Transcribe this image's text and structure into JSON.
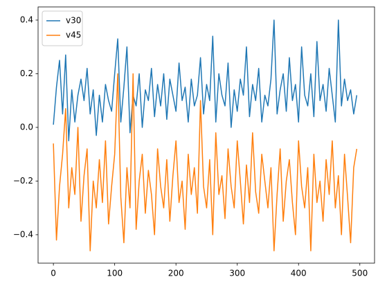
{
  "chart_data": {
    "type": "line",
    "x": [
      0,
      5,
      10,
      15,
      20,
      25,
      30,
      35,
      40,
      45,
      50,
      55,
      60,
      65,
      70,
      75,
      80,
      85,
      90,
      95,
      100,
      105,
      110,
      115,
      120,
      125,
      130,
      135,
      140,
      145,
      150,
      155,
      160,
      165,
      170,
      175,
      180,
      185,
      190,
      195,
      200,
      205,
      210,
      215,
      220,
      225,
      230,
      235,
      240,
      245,
      250,
      255,
      260,
      265,
      270,
      275,
      280,
      285,
      290,
      295,
      300,
      305,
      310,
      315,
      320,
      325,
      330,
      335,
      340,
      345,
      350,
      355,
      360,
      365,
      370,
      375,
      380,
      385,
      390,
      395,
      400,
      405,
      410,
      415,
      420,
      425,
      430,
      435,
      440,
      445,
      450,
      455,
      460,
      465,
      470,
      475,
      480,
      485,
      490,
      495
    ],
    "series": [
      {
        "name": "v30",
        "color": "#1f77b4",
        "values": [
          0.01,
          0.15,
          0.25,
          0.05,
          0.27,
          -0.05,
          0.14,
          0.02,
          0.12,
          0.18,
          0.1,
          0.22,
          0.05,
          0.14,
          -0.03,
          0.12,
          0.02,
          0.16,
          0.1,
          0.06,
          0.2,
          0.33,
          0.02,
          0.15,
          0.3,
          -0.02,
          0.12,
          0.08,
          0.2,
          0.0,
          0.14,
          0.1,
          0.22,
          0.04,
          0.16,
          0.08,
          0.2,
          0.03,
          0.18,
          0.12,
          0.06,
          0.24,
          0.1,
          0.15,
          0.02,
          0.18,
          0.08,
          0.12,
          0.26,
          0.05,
          0.16,
          0.1,
          0.34,
          0.02,
          0.2,
          0.12,
          0.08,
          0.24,
          0.0,
          0.14,
          0.06,
          0.18,
          0.12,
          0.3,
          0.04,
          0.16,
          0.1,
          0.22,
          0.02,
          0.12,
          0.08,
          0.18,
          0.4,
          0.05,
          0.14,
          0.2,
          0.06,
          0.26,
          0.1,
          0.16,
          0.02,
          0.3,
          0.12,
          0.08,
          0.2,
          0.04,
          0.32,
          0.1,
          0.16,
          0.06,
          0.22,
          0.12,
          0.02,
          0.4,
          0.08,
          0.18,
          0.1,
          0.14,
          0.05,
          0.12
        ]
      },
      {
        "name": "v45",
        "color": "#ff7f0e",
        "values": [
          -0.06,
          -0.42,
          -0.22,
          -0.1,
          0.07,
          -0.3,
          -0.15,
          -0.25,
          0.0,
          -0.35,
          -0.18,
          -0.08,
          -0.46,
          -0.2,
          -0.3,
          -0.12,
          -0.28,
          -0.05,
          -0.36,
          -0.22,
          -0.1,
          0.2,
          -0.26,
          -0.43,
          -0.15,
          -0.3,
          0.2,
          -0.38,
          -0.2,
          -0.1,
          -0.32,
          -0.16,
          -0.25,
          -0.4,
          -0.08,
          -0.22,
          -0.3,
          -0.12,
          -0.35,
          -0.18,
          -0.05,
          -0.28,
          -0.2,
          -0.38,
          -0.1,
          -0.25,
          -0.15,
          -0.32,
          0.1,
          -0.22,
          -0.3,
          -0.12,
          -0.4,
          -0.02,
          -0.25,
          -0.18,
          -0.34,
          -0.08,
          -0.22,
          -0.3,
          -0.05,
          -0.2,
          -0.36,
          -0.14,
          -0.28,
          -0.02,
          -0.24,
          -0.32,
          -0.1,
          -0.2,
          -0.3,
          -0.15,
          -0.46,
          -0.25,
          -0.08,
          -0.35,
          -0.2,
          -0.12,
          -0.28,
          -0.4,
          -0.05,
          -0.22,
          -0.3,
          -0.15,
          -0.46,
          -0.1,
          -0.28,
          -0.2,
          -0.35,
          -0.12,
          -0.25,
          -0.05,
          -0.3,
          -0.18,
          -0.4,
          -0.1,
          -0.26,
          -0.43,
          -0.15,
          -0.08
        ]
      }
    ],
    "xlim": [
      -25,
      524
    ],
    "ylim": [
      -0.506,
      0.449
    ],
    "xticks": [
      0,
      100,
      200,
      300,
      400,
      500
    ],
    "yticks": [
      {
        "value": -0.4,
        "label": "−0.4"
      },
      {
        "value": -0.2,
        "label": "−0.2"
      },
      {
        "value": 0.0,
        "label": "0.0"
      },
      0.2,
      0.4
    ],
    "grid": false,
    "legend": "upper left"
  }
}
